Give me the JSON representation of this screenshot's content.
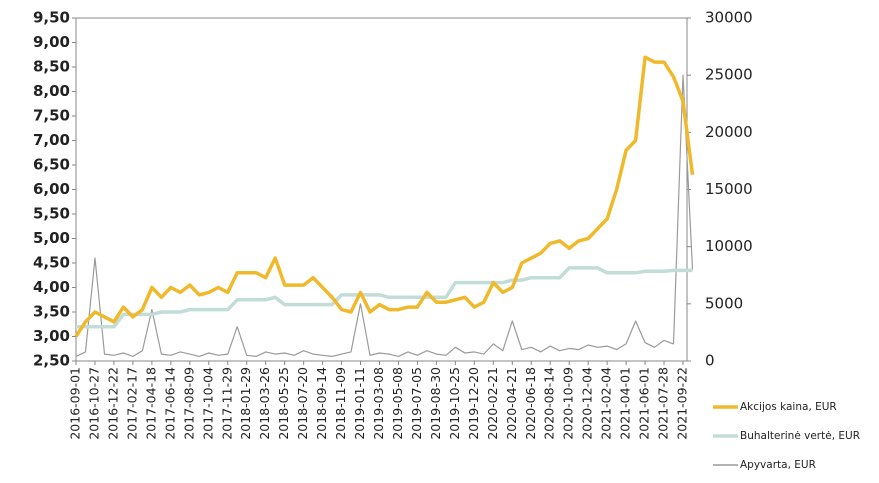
{
  "chart_data": {
    "type": "line",
    "categories": [
      "2016-09-01",
      null,
      "2016-10-27",
      null,
      "2016-12-22",
      null,
      "2017-02-17",
      null,
      "2017-04-18",
      null,
      "2017-06-14",
      null,
      "2017-08-09",
      null,
      "2017-10-04",
      null,
      "2017-11-29",
      null,
      "2018-01-29",
      null,
      "2018-03-26",
      null,
      "2018-05-25",
      null,
      "2018-07-20",
      null,
      "2018-09-14",
      null,
      "2018-11-09",
      null,
      "2019-01-11",
      null,
      "2019-03-08",
      null,
      "2019-05-08",
      null,
      "2019-07-05",
      null,
      "2019-08-30",
      null,
      "2019-10-25",
      null,
      "2019-12-20",
      null,
      "2020-02-21",
      null,
      "2020-04-21",
      null,
      "2020-06-18",
      null,
      "2020-08-14",
      null,
      "2020-10-09",
      null,
      "2020-12-04",
      null,
      "2021-02-04",
      null,
      "2021-04-01",
      null,
      "2021-06-01",
      null,
      "2021-07-28",
      null,
      "2021-09-22",
      null
    ],
    "series": [
      {
        "name": "Apyvarta, EUR",
        "color": "#9a9a9a",
        "axis": "y2",
        "values": [
          400,
          800,
          9000,
          600,
          500,
          700,
          400,
          900,
          4500,
          600,
          500,
          800,
          600,
          400,
          700,
          500,
          600,
          3000,
          500,
          400,
          800,
          600,
          700,
          500,
          900,
          600,
          500,
          400,
          600,
          800,
          5000,
          500,
          700,
          600,
          400,
          800,
          500,
          900,
          600,
          500,
          1200,
          700,
          800,
          600,
          1500,
          900,
          3500,
          1000,
          1200,
          800,
          1300,
          900,
          1100,
          1000,
          1400,
          1200,
          1300,
          1000,
          1500,
          3500,
          1600,
          1200,
          1800,
          1500,
          25000,
          8000
        ]
      },
      {
        "name": "Buhalterinė vertė, EUR",
        "color": "#c2dcd8",
        "values": [
          3.2,
          3.2,
          3.2,
          3.2,
          3.2,
          3.45,
          3.45,
          3.45,
          3.45,
          3.5,
          3.5,
          3.5,
          3.55,
          3.55,
          3.55,
          3.55,
          3.55,
          3.75,
          3.75,
          3.75,
          3.75,
          3.8,
          3.65,
          3.65,
          3.65,
          3.65,
          3.65,
          3.65,
          3.85,
          3.85,
          3.85,
          3.85,
          3.85,
          3.8,
          3.8,
          3.8,
          3.8,
          3.8,
          3.8,
          3.8,
          4.1,
          4.1,
          4.1,
          4.1,
          4.1,
          4.1,
          4.15,
          4.15,
          4.2,
          4.2,
          4.2,
          4.2,
          4.4,
          4.4,
          4.4,
          4.4,
          4.3,
          4.3,
          4.3,
          4.3,
          4.33,
          4.33,
          4.33,
          4.35,
          4.35,
          4.35
        ]
      },
      {
        "name": "Akcijos kaina, EUR",
        "color": "#f0b92b",
        "values": [
          3.0,
          3.3,
          3.5,
          3.4,
          3.3,
          3.6,
          3.4,
          3.55,
          4.0,
          3.8,
          4.0,
          3.9,
          4.05,
          3.85,
          3.9,
          4.0,
          3.9,
          4.3,
          4.3,
          4.3,
          4.2,
          4.6,
          4.05,
          4.05,
          4.05,
          4.2,
          4.0,
          3.8,
          3.55,
          3.5,
          3.9,
          3.5,
          3.65,
          3.55,
          3.55,
          3.6,
          3.6,
          3.9,
          3.7,
          3.7,
          3.75,
          3.8,
          3.6,
          3.7,
          4.1,
          3.9,
          4.0,
          4.5,
          4.6,
          4.7,
          4.9,
          4.95,
          4.8,
          4.95,
          5.0,
          5.2,
          5.4,
          6.0,
          6.8,
          7.0,
          8.7,
          8.6,
          8.6,
          8.3,
          7.8,
          6.3
        ]
      }
    ],
    "ylim": [
      2.5,
      9.5
    ],
    "yticks": [
      {
        "value": 2.5,
        "label": "2,50"
      },
      {
        "value": 3,
        "label": "3,00"
      },
      {
        "value": 3.5,
        "label": "3,50"
      },
      {
        "value": 4,
        "label": "4,00"
      },
      {
        "value": 4.5,
        "label": "4,50"
      },
      {
        "value": 5,
        "label": "5,00"
      },
      {
        "value": 5.5,
        "label": "5,50"
      },
      {
        "value": 6,
        "label": "6,00"
      },
      {
        "value": 6.5,
        "label": "6,50"
      },
      {
        "value": 7,
        "label": "7,00"
      },
      {
        "value": 7.5,
        "label": "7,50"
      },
      {
        "value": 8,
        "label": "8,00"
      },
      {
        "value": 8.5,
        "label": "8,50"
      },
      {
        "value": 9,
        "label": "9,00"
      },
      {
        "value": 9.5,
        "label": "9,50"
      }
    ],
    "y2lim": [
      0,
      30000
    ],
    "y2ticks": [
      0,
      5000,
      10000,
      15000,
      20000,
      25000,
      30000
    ],
    "legend": "right"
  }
}
